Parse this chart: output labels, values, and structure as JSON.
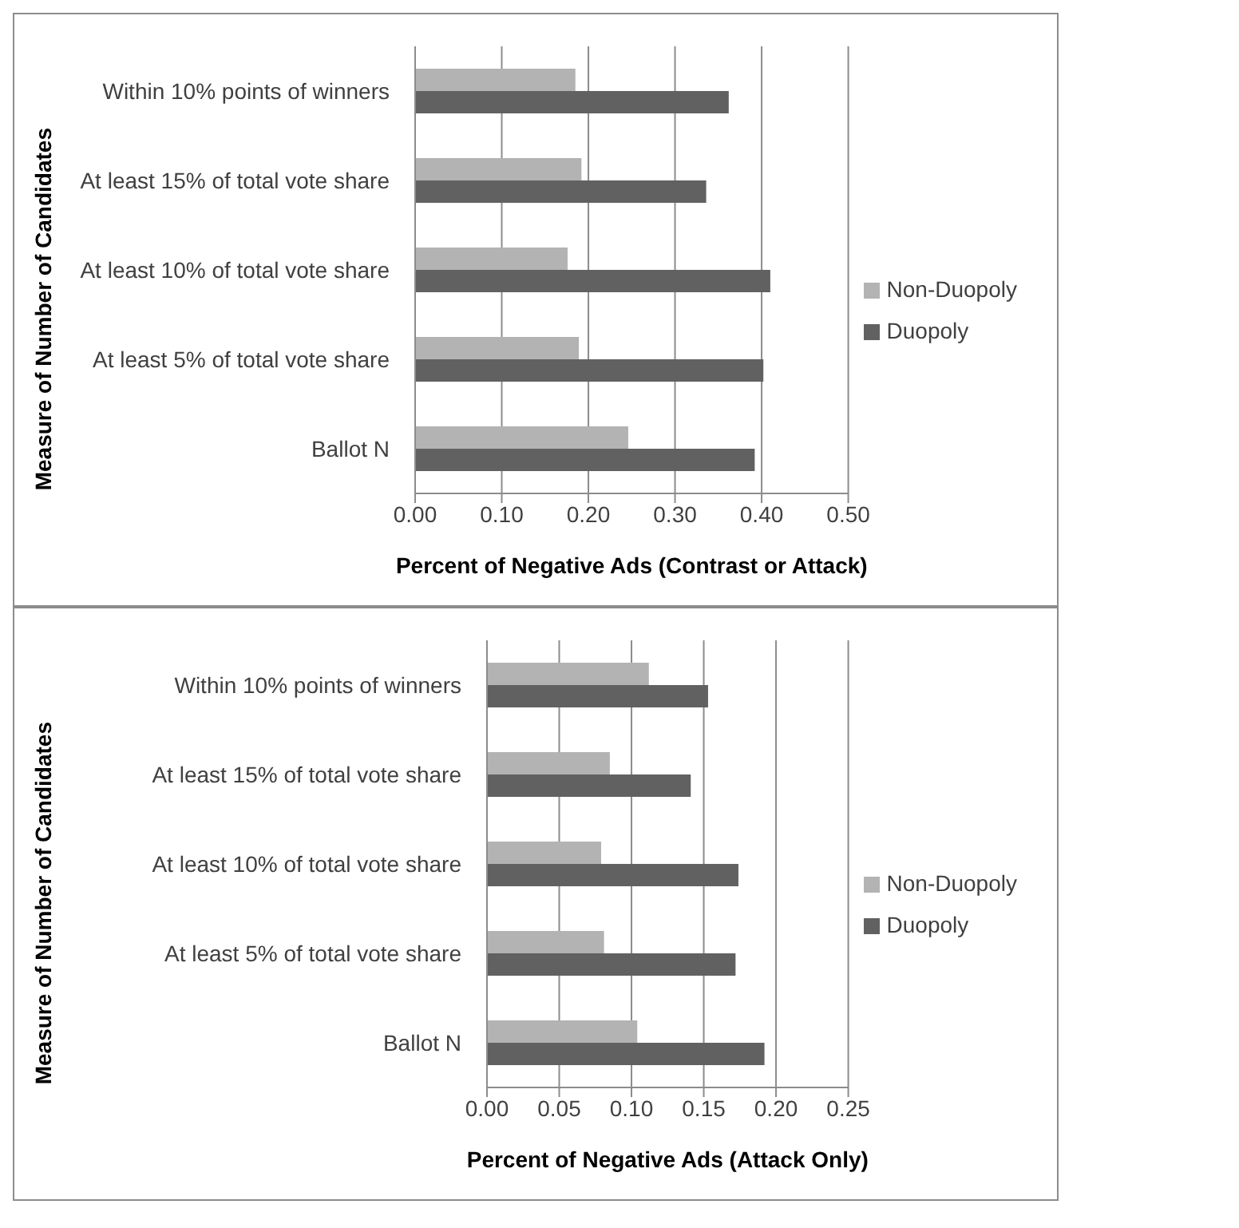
{
  "chart_data": [
    {
      "type": "bar",
      "orientation": "horizontal",
      "xlabel": "Percent of Negative Ads (Contrast or Attack)",
      "ylabel": "Measure of Number of Candidates",
      "categories": [
        "Within 10% points of winners",
        "At least 15% of total vote share",
        "At least 10% of total vote share",
        "At least 5% of total vote share",
        "Ballot N"
      ],
      "series": [
        {
          "name": "Non-Duopoly",
          "color": "#b3b3b3",
          "values": [
            0.185,
            0.192,
            0.176,
            0.189,
            0.246
          ]
        },
        {
          "name": "Duopoly",
          "color": "#616161",
          "values": [
            0.362,
            0.336,
            0.41,
            0.402,
            0.392
          ]
        }
      ],
      "xlim": [
        0,
        0.5
      ],
      "xticks": [
        {
          "value": 0,
          "label": "0.00"
        },
        {
          "value": 0.1,
          "label": "0.10"
        },
        {
          "value": 0.2,
          "label": "0.20"
        },
        {
          "value": 0.3,
          "label": "0.30"
        },
        {
          "value": 0.4,
          "label": "0.40"
        },
        {
          "value": 0.5,
          "label": "0.50"
        }
      ],
      "grid": "x",
      "legend": "right"
    },
    {
      "type": "bar",
      "orientation": "horizontal",
      "xlabel": "Percent of Negative Ads (Attack Only)",
      "ylabel": "Measure of Number of Candidates",
      "categories": [
        "Within 10% points of winners",
        "At least 15% of total vote share",
        "At least 10% of total vote share",
        "At least 5% of total vote share",
        "Ballot N"
      ],
      "series": [
        {
          "name": "Non-Duopoly",
          "color": "#b3b3b3",
          "values": [
            0.112,
            0.085,
            0.079,
            0.081,
            0.104
          ]
        },
        {
          "name": "Duopoly",
          "color": "#616161",
          "values": [
            0.153,
            0.141,
            0.174,
            0.172,
            0.192
          ]
        }
      ],
      "xlim": [
        0,
        0.25
      ],
      "xticks": [
        {
          "value": 0,
          "label": "0.00"
        },
        {
          "value": 0.05,
          "label": "0.05"
        },
        {
          "value": 0.1,
          "label": "0.10"
        },
        {
          "value": 0.15,
          "label": "0.15"
        },
        {
          "value": 0.2,
          "label": "0.20"
        },
        {
          "value": 0.25,
          "label": "0.25"
        }
      ],
      "grid": "x",
      "legend": "right"
    }
  ]
}
